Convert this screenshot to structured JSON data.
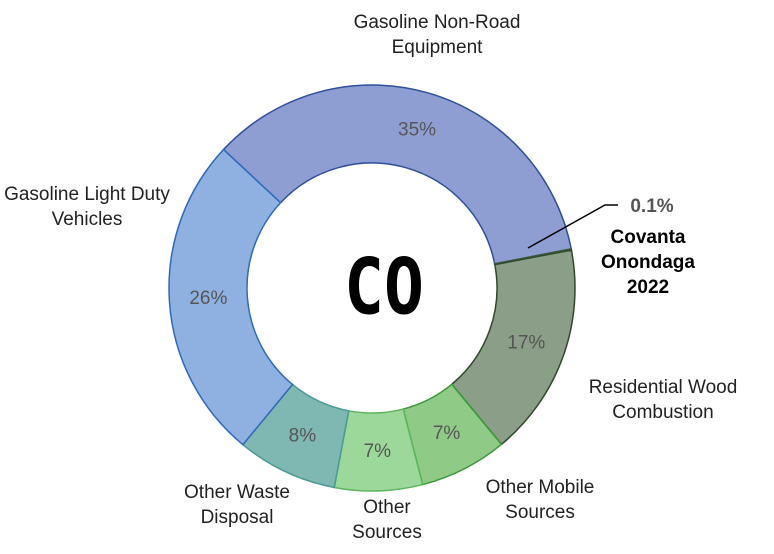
{
  "chart_data": {
    "type": "donut",
    "center_text": "CO",
    "categories": [
      "Gasoline Non-Road Equipment",
      "Covanta Onondaga 2022",
      "Residential Wood Combustion",
      "Other Mobile Sources",
      "Other Sources",
      "Other Waste Disposal",
      "Gasoline Light Duty Vehicles"
    ],
    "values": [
      35,
      0.1,
      17,
      7,
      7,
      8,
      26
    ],
    "value_labels": [
      "35%",
      "0.1%",
      "17%",
      "7%",
      "7%",
      "8%",
      "26%"
    ],
    "colors": [
      "#8e9dd2",
      "#6f8a6a",
      "#8b9e87",
      "#8fcb86",
      "#9bd89a",
      "#7fb7b2",
      "#8fb1e2"
    ]
  }
}
